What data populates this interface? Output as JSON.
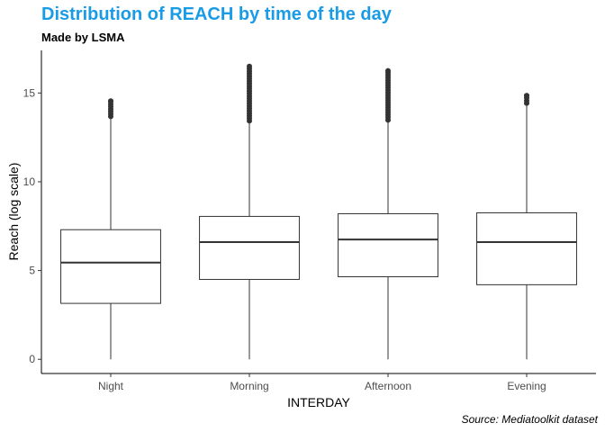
{
  "title": "Distribution of REACH by time of the day",
  "subtitle": "Made by LSMA",
  "caption": "Source: Mediatoolkit dataset",
  "colors": {
    "title": "#1a9be6",
    "box_fill": "#ffffff",
    "box_stroke": "#333333",
    "outlier": "#333333"
  },
  "chart_data": {
    "type": "boxplot",
    "xlabel": "INTERDAY",
    "ylabel": "Reach (log scale)",
    "ylim": [
      -0.8,
      17.4
    ],
    "yticks": [
      0,
      5,
      10,
      15
    ],
    "grid": false,
    "legend": "none",
    "categories": [
      "Night",
      "Morning",
      "Afternoon",
      "Evening"
    ],
    "boxes": [
      {
        "category": "Night",
        "whisker_low": 0,
        "q1": 3.15,
        "median": 5.45,
        "q3": 7.3,
        "whisker_high": 13.6,
        "outlier_max": 14.55
      },
      {
        "category": "Morning",
        "whisker_low": 0,
        "q1": 4.5,
        "median": 6.6,
        "q3": 8.05,
        "whisker_high": 13.35,
        "outlier_max": 16.5
      },
      {
        "category": "Afternoon",
        "whisker_low": 0,
        "q1": 4.65,
        "median": 6.75,
        "q3": 8.2,
        "whisker_high": 13.4,
        "outlier_max": 16.25
      },
      {
        "category": "Evening",
        "whisker_low": 0,
        "q1": 4.2,
        "median": 6.6,
        "q3": 8.25,
        "whisker_high": 14.35,
        "outlier_max": 14.85
      }
    ]
  }
}
